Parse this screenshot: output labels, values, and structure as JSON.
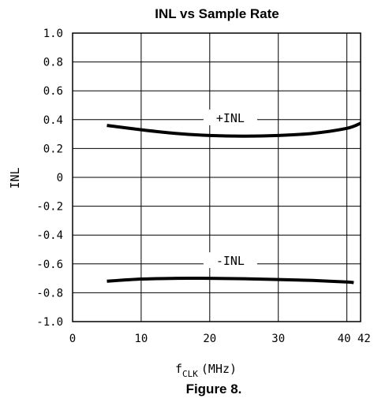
{
  "chart_data": {
    "type": "line",
    "title": "INL vs Sample Rate",
    "ylabel": "INL",
    "xlabel": "f",
    "xlabel_sub": "CLK",
    "xlabel_unit": "(MHz)",
    "caption": "Figure 8.",
    "xlim": [
      0,
      42
    ],
    "ylim": [
      -1.0,
      1.0
    ],
    "x_ticks": [
      0,
      10,
      20,
      30,
      40,
      42
    ],
    "x_tick_labels": [
      "0",
      "10",
      "20",
      "30",
      "40",
      "42"
    ],
    "y_ticks": [
      1.0,
      0.8,
      0.6,
      0.4,
      0.2,
      0,
      -0.2,
      -0.4,
      -0.6,
      -0.8,
      -1.0
    ],
    "y_tick_labels": [
      "1.0",
      "0.8",
      "0.6",
      "0.4",
      "0.2",
      "0",
      "-0.2",
      "-0.4",
      "-0.6",
      "-0.8",
      "-1.0"
    ],
    "grid": true,
    "series": [
      {
        "name": "+INL",
        "x": [
          5,
          10,
          15,
          20,
          25,
          30,
          35,
          40,
          42
        ],
        "values": [
          0.36,
          0.33,
          0.305,
          0.29,
          0.285,
          0.29,
          0.305,
          0.34,
          0.375
        ]
      },
      {
        "name": "-INL",
        "x": [
          5,
          10,
          15,
          20,
          25,
          30,
          35,
          40,
          41
        ],
        "values": [
          -0.72,
          -0.705,
          -0.7,
          -0.7,
          -0.703,
          -0.708,
          -0.715,
          -0.725,
          -0.73
        ]
      }
    ]
  }
}
